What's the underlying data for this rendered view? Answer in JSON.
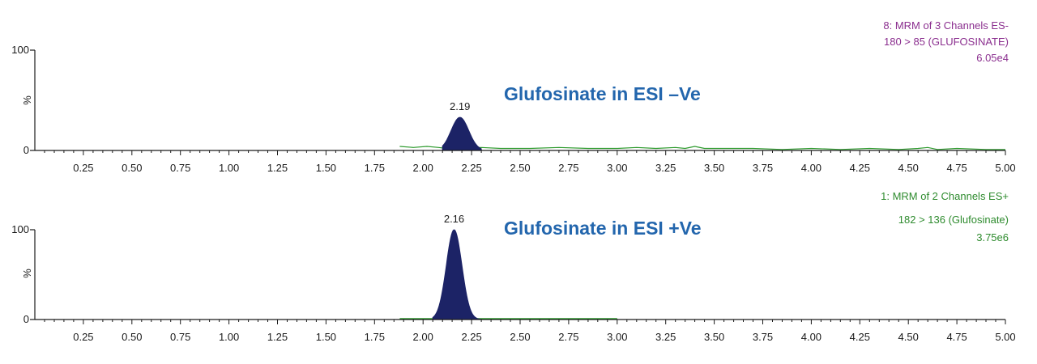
{
  "colors": {
    "axis": "#1a1a1a",
    "baseline_trace": "#2e9b2e",
    "peak_fill": "#1c2366",
    "title": "#2366ad",
    "channel_info_top": "#8b2f8f",
    "channel_info_bottom": "#2e8b2e"
  },
  "chart_data": [
    {
      "type": "area",
      "title": "Glufosinate in ESI –Ve",
      "channel_info": [
        "8: MRM of 3 Channels ES-",
        "180 > 85 (GLUFOSINATE)",
        "6.05e4"
      ],
      "xlim": [
        0,
        5.0
      ],
      "ylim": [
        0,
        100
      ],
      "y_label": "%",
      "y_ticks": [
        "100",
        "0"
      ],
      "x_ticks": [
        "0.25",
        "0.50",
        "0.75",
        "1.00",
        "1.25",
        "1.50",
        "1.75",
        "2.00",
        "2.25",
        "2.50",
        "2.75",
        "3.00",
        "3.25",
        "3.50",
        "3.75",
        "4.00",
        "4.25",
        "4.50",
        "4.75",
        "5.00"
      ],
      "peak": {
        "label": "2.19",
        "rt": 2.19,
        "height": 33,
        "width": 0.045,
        "start": 2.1,
        "end": 2.3
      },
      "trace": {
        "x": [
          1.88,
          1.95,
          2.02,
          2.08,
          2.12,
          2.3,
          2.4,
          2.55,
          2.7,
          2.85,
          3.0,
          3.1,
          3.2,
          3.3,
          3.35,
          3.4,
          3.45,
          3.55,
          3.7,
          3.85,
          4.0,
          4.15,
          4.3,
          4.45,
          4.55,
          4.6,
          4.65,
          4.75,
          4.9,
          5.0
        ],
        "y": [
          4,
          3,
          4,
          3,
          2,
          3,
          2,
          2,
          3,
          2,
          2,
          3,
          2,
          3,
          2,
          4,
          2,
          2,
          2,
          1,
          2,
          1,
          2,
          1,
          2,
          3,
          1,
          2,
          1,
          1
        ]
      }
    },
    {
      "type": "area",
      "title": "Glufosinate in ESI +Ve",
      "channel_info": [
        "1: MRM of 2 Channels ES+",
        "182 > 136 (Glufosinate)",
        "3.75e6"
      ],
      "xlim": [
        0,
        5.0
      ],
      "ylim": [
        0,
        100
      ],
      "y_label": "%",
      "y_ticks": [
        "100",
        "0"
      ],
      "x_ticks": [
        "0.25",
        "0.50",
        "0.75",
        "1.00",
        "1.25",
        "1.50",
        "1.75",
        "2.00",
        "2.25",
        "2.50",
        "2.75",
        "3.00",
        "3.25",
        "3.50",
        "3.75",
        "4.00",
        "4.25",
        "4.50",
        "4.75",
        "5.00"
      ],
      "peak": {
        "label": "2.16",
        "rt": 2.16,
        "height": 100,
        "width": 0.04,
        "start": 2.05,
        "end": 2.3
      },
      "trace": {
        "x": [
          1.88,
          2.0,
          2.3,
          2.6,
          3.0
        ],
        "y": [
          1,
          1,
          1,
          1,
          1
        ]
      }
    }
  ]
}
